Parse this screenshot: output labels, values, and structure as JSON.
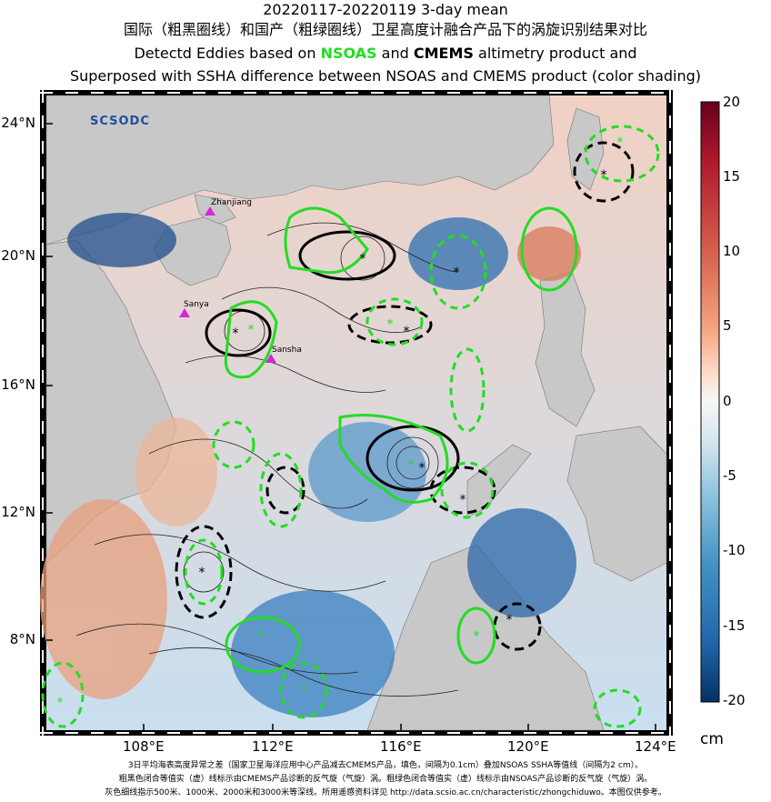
{
  "title": {
    "line1": "20220117-20220119 3-day mean",
    "line2": "国际（粗黑圈线）和国产（粗绿圈线）卫星高度计融合产品下的涡旋识别结果对比",
    "line3_pre": "Detectd Eddies based on",
    "line3_nsoas": "NSOAS",
    "line3_and": "and",
    "line3_cmems": "CMEMS",
    "line3_post": "altimetry product and",
    "line4": "Superposed with SSHA difference between NSOAS and CMEMS product (color shading)"
  },
  "map": {
    "lat_labels": [
      "24°N",
      "20°N",
      "16°N",
      "12°N",
      "8°N"
    ],
    "lon_labels": [
      "108°E",
      "112°E",
      "116°E",
      "120°E",
      "124°E"
    ],
    "places": [
      "Zhanjiang",
      "Sanya",
      "Sansha"
    ],
    "logo_text": "SCSODC"
  },
  "colorbar": {
    "ticks": [
      "20",
      "15",
      "10",
      "5",
      "0",
      "-5",
      "-10",
      "-15",
      "-20"
    ],
    "unit": "cm",
    "colors": [
      "#67001f",
      "#b2182b",
      "#d6604d",
      "#f4a582",
      "#fddbc7",
      "#f7f7f7",
      "#d1e5f0",
      "#92c5de",
      "#4393c3",
      "#2166ac",
      "#053061"
    ]
  },
  "footer": {
    "line1": "3日平均海表高度异常之差（国家卫星海洋应用中心产品减去CMEMS产品，填色，间隔为0.1cm）叠加NSOAS SSHA等值线（间隔为2 cm）。",
    "line2": "粗黑色闭合等值实（虚）线标示由CMEMS产品诊断的反气旋（气旋）涡。粗绿色闭合等值实（虚）线标示由NSOAS产品诊断的反气旋（气旋）涡。",
    "line3": "灰色细线指示500米、1000米、2000米和3000米等深线。所用遥感资料详见 http://data.scsio.ac.cn/characteristic/zhongchiduwo。本图仅供参考。"
  }
}
